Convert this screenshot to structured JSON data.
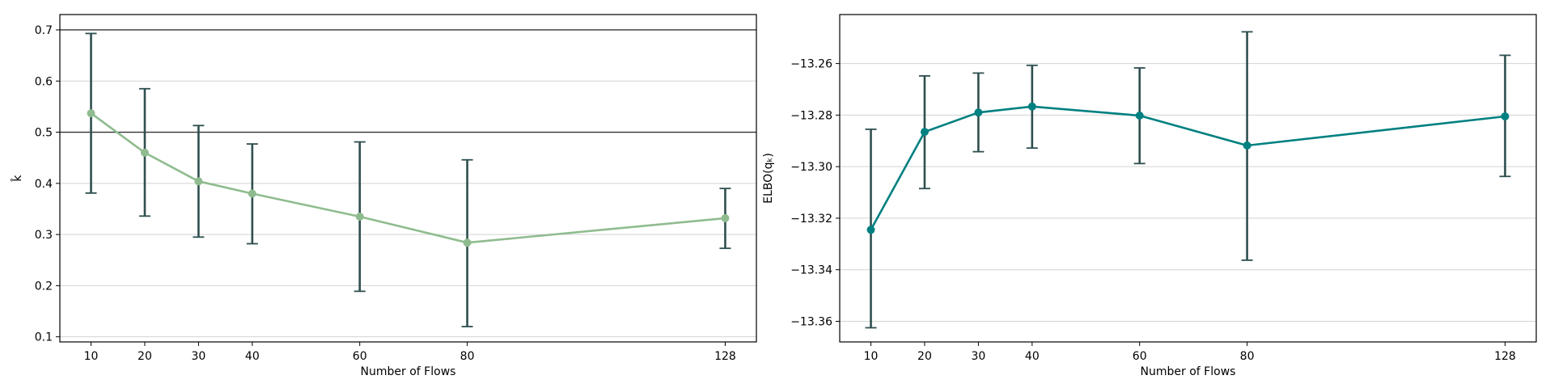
{
  "chart_data": [
    {
      "type": "line",
      "xlabel": "Number of Flows",
      "ylabel": "k̂",
      "x": [
        10,
        20,
        30,
        40,
        60,
        80,
        128
      ],
      "xticks": [
        "10",
        "20",
        "30",
        "40",
        "60",
        "80",
        "128"
      ],
      "xlim": [
        4.2,
        133.8
      ],
      "ylim": [
        0.09,
        0.73
      ],
      "yticks": [
        0.1,
        0.2,
        0.3,
        0.4,
        0.5,
        0.6,
        0.7
      ],
      "ytick_labels": [
        "0.1",
        "0.2",
        "0.3",
        "0.4",
        "0.5",
        "0.6",
        "0.7"
      ],
      "grid": "y",
      "hlines": [
        0.5,
        0.7
      ],
      "line_color": "#8fbc8f",
      "errorbar_color": "#2f4f4f",
      "series": [
        {
          "values": [
            0.537,
            0.46,
            0.404,
            0.38,
            0.335,
            0.284,
            0.332
          ],
          "err_low": [
            0.381,
            0.336,
            0.295,
            0.282,
            0.189,
            0.12,
            0.273
          ],
          "err_high": [
            0.693,
            0.585,
            0.513,
            0.477,
            0.481,
            0.446,
            0.39
          ]
        }
      ]
    },
    {
      "type": "line",
      "xlabel": "Number of Flows",
      "ylabel": "ELBO(qₖ)",
      "x": [
        10,
        20,
        30,
        40,
        60,
        80,
        128
      ],
      "xticks": [
        "10",
        "20",
        "30",
        "40",
        "60",
        "80",
        "128"
      ],
      "xlim": [
        4.2,
        133.8
      ],
      "ylim": [
        -13.368,
        -13.241
      ],
      "yticks": [
        -13.36,
        -13.34,
        -13.32,
        -13.3,
        -13.28,
        -13.26
      ],
      "ytick_labels": [
        "−13.36",
        "−13.34",
        "−13.32",
        "−13.30",
        "−13.28",
        "−13.26"
      ],
      "grid": "y",
      "line_color": "#008080",
      "errorbar_color": "#2f4f4f",
      "series": [
        {
          "values": [
            -13.3245,
            -13.2865,
            -13.279,
            -13.2767,
            -13.2802,
            -13.2918,
            -13.2805
          ],
          "err_low": [
            -13.3625,
            -13.3085,
            -13.2942,
            -13.2928,
            -13.2988,
            -13.3363,
            -13.3038
          ],
          "err_high": [
            -13.2855,
            -13.2648,
            -13.2637,
            -13.2607,
            -13.2617,
            -13.2477,
            -13.2568
          ]
        }
      ]
    }
  ]
}
